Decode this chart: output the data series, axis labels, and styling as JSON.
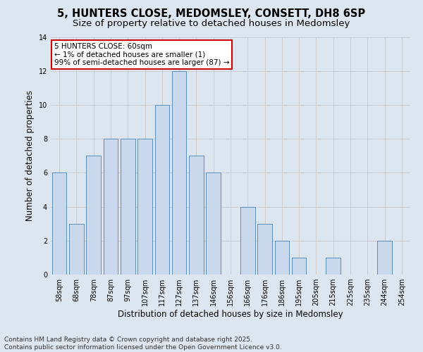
{
  "title_line1": "5, HUNTERS CLOSE, MEDOMSLEY, CONSETT, DH8 6SP",
  "title_line2": "Size of property relative to detached houses in Medomsley",
  "xlabel": "Distribution of detached houses by size in Medomsley",
  "ylabel": "Number of detached properties",
  "categories": [
    "58sqm",
    "68sqm",
    "78sqm",
    "87sqm",
    "97sqm",
    "107sqm",
    "117sqm",
    "127sqm",
    "137sqm",
    "146sqm",
    "156sqm",
    "166sqm",
    "176sqm",
    "186sqm",
    "195sqm",
    "205sqm",
    "215sqm",
    "225sqm",
    "235sqm",
    "244sqm",
    "254sqm"
  ],
  "values": [
    6,
    3,
    7,
    8,
    8,
    8,
    10,
    12,
    7,
    6,
    0,
    4,
    3,
    2,
    1,
    0,
    1,
    0,
    0,
    2,
    0
  ],
  "bar_color": "#c9d9eb",
  "bar_edge_color": "#5b8db8",
  "annotation_text": "5 HUNTERS CLOSE: 60sqm\n← 1% of detached houses are smaller (1)\n99% of semi-detached houses are larger (87) →",
  "annotation_box_color": "#ffffff",
  "annotation_box_edge_color": "#cc0000",
  "ylim": [
    0,
    14
  ],
  "yticks": [
    0,
    2,
    4,
    6,
    8,
    10,
    12,
    14
  ],
  "grid_color": "#cccccc",
  "plot_bg_color": "#dce6f0",
  "fig_bg_color": "#dce6f0",
  "footer_line1": "Contains HM Land Registry data © Crown copyright and database right 2025.",
  "footer_line2": "Contains public sector information licensed under the Open Government Licence v3.0.",
  "title_fontsize": 10.5,
  "subtitle_fontsize": 9.5,
  "tick_fontsize": 7,
  "xlabel_fontsize": 8.5,
  "ylabel_fontsize": 8.5,
  "footer_fontsize": 6.5,
  "annotation_fontsize": 7.5
}
